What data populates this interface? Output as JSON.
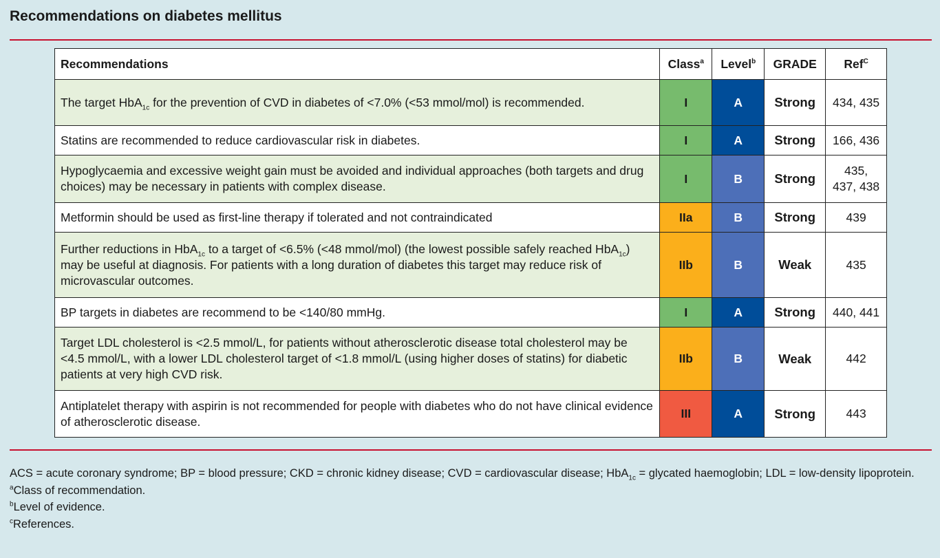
{
  "title": "Recommendations on diabetes mellitus",
  "header": {
    "recommendations": "Recommendations",
    "class": "Class",
    "class_sup": "a",
    "level": "Level",
    "level_sup": "b",
    "grade": "GRADE",
    "ref": "Ref",
    "ref_sup": "C"
  },
  "rows": [
    {
      "pre": "The target HbA",
      "sub": "1c",
      "post": " for the prevention of CVD in diabetes of <7.0% (<53 mmol/mol) is recommended.",
      "cls": "I",
      "level": "A",
      "grade": "Strong",
      "ref": "434, 435"
    },
    {
      "text": "Statins are recommended to reduce cardiovascular risk in diabetes.",
      "cls": "I",
      "level": "A",
      "grade": "Strong",
      "ref": "166, 436"
    },
    {
      "text": "Hypoglycaemia and excessive weight gain must be avoided and individual approaches (both targets and drug choices) may be necessary in patients with complex disease.",
      "cls": "I",
      "level": "B",
      "grade": "Strong",
      "ref": "435, 437, 438"
    },
    {
      "text": "Metformin should be used as first-line therapy if tolerated and not contraindicated",
      "cls": "IIa",
      "level": "B",
      "grade": "Strong",
      "ref": "439"
    },
    {
      "pre": "Further reductions in HbA",
      "sub": "1c",
      "mid": " to a target of <6.5% (<48 mmol/mol) (the lowest possible safely reached HbA",
      "sub2": "1c",
      "post": ") may be useful at diagnosis. For patients with a long duration of diabetes this target may reduce risk of microvascular outcomes.",
      "cls": "IIb",
      "level": "B",
      "grade": "Weak",
      "ref": "435"
    },
    {
      "text": "BP targets in diabetes are recommend to be <140/80 mmHg.",
      "cls": "I",
      "level": "A",
      "grade": "Strong",
      "ref": "440, 441"
    },
    {
      "text": "Target LDL cholesterol is <2.5 mmol/L, for patients without atherosclerotic disease total cholesterol may be <4.5 mmol/L, with a lower LDL cholesterol target of <1.8 mmol/L (using higher doses of statins) for diabetic patients at very high CVD risk.",
      "cls": "IIb",
      "level": "B",
      "grade": "Weak",
      "ref": "442"
    },
    {
      "text": "Antiplatelet therapy with aspirin is not recommended for people with diabetes who do not have clinical evidence of atherosclerotic disease.",
      "cls": "III",
      "level": "A",
      "grade": "Strong",
      "ref": "443"
    }
  ],
  "footer": {
    "abbrev_pre": "ACS = acute coronary syndrome; BP = blood pressure; CKD = chronic kidney disease; CVD = cardiovascular disease; HbA",
    "abbrev_sub": "1c",
    "abbrev_post": " = glycated haemoglobin; LDL = low-density lipoprotein.",
    "notes": [
      {
        "mark": "a",
        "text": "Class of recommendation."
      },
      {
        "mark": "b",
        "text": "Level of evidence."
      },
      {
        "mark": "c",
        "text": "References."
      }
    ]
  },
  "colors": {
    "rule": "#c8102e",
    "background": "#d6e8ec",
    "green_row": "#e6f0dc",
    "class_I": "#77bb6d",
    "class_IIa_IIb": "#fbaf1b",
    "class_III": "#f05a41",
    "level_A": "#004d99",
    "level_B": "#4d6fb8"
  }
}
